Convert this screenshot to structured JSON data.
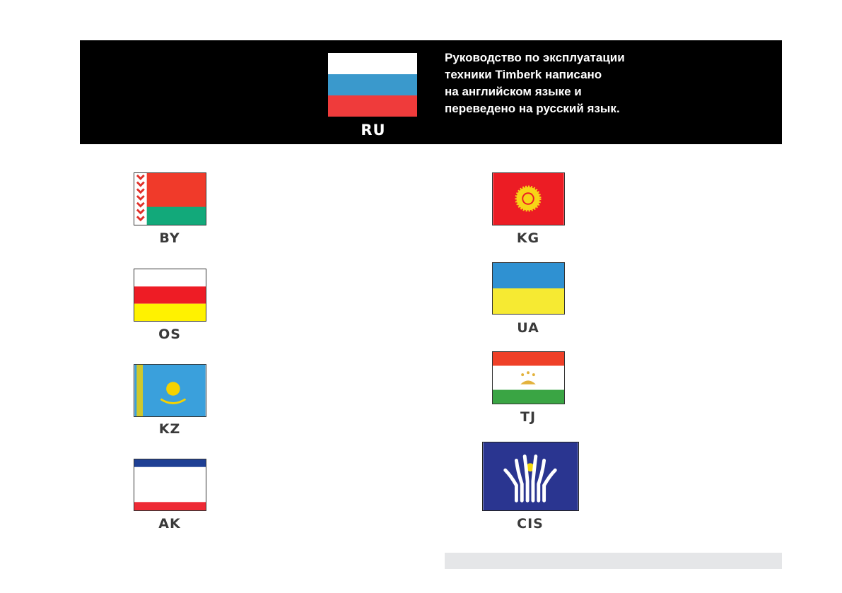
{
  "header": {
    "code": "RU",
    "text": "Руководство по эксплуатации\nтехники Timberk написано\nна английском языке и\nпереведено на русский язык."
  },
  "flags": {
    "by": "BY",
    "os": "OS",
    "kz": "KZ",
    "ak": "AK",
    "kg": "KG",
    "ua": "UA",
    "tj": "TJ",
    "cis": "CIS"
  },
  "colors": {
    "banner": "#000000",
    "label": "#3a3a3a",
    "footer_bar": "#e5e6e8"
  }
}
